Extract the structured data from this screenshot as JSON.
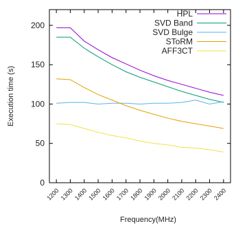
{
  "chart_data": {
    "type": "line",
    "title": "",
    "xlabel": "Frequency(MHz)",
    "ylabel": "Execution time (s)",
    "x": [
      1200,
      1300,
      1400,
      1500,
      1600,
      1700,
      1800,
      1900,
      2000,
      2100,
      2200,
      2300,
      2400
    ],
    "xlim": [
      1150,
      2450
    ],
    "ylim": [
      0,
      220
    ],
    "yticks": [
      0,
      50,
      100,
      150,
      200
    ],
    "grid": false,
    "legend_position": "top-right",
    "series": [
      {
        "name": "HPL",
        "color": "#9400d3",
        "values": [
          197,
          197,
          180,
          169,
          159,
          151,
          143,
          136,
          130,
          125,
          120,
          115,
          111
        ]
      },
      {
        "name": "SVD Band",
        "color": "#009e73",
        "values": [
          185,
          185,
          171,
          160,
          150,
          141,
          134,
          128,
          122,
          116,
          111,
          106,
          102
        ]
      },
      {
        "name": "SVD Bulge",
        "color": "#56b4e9",
        "values": [
          101,
          102,
          102,
          100,
          101,
          101,
          100,
          101,
          101,
          102,
          105,
          100,
          103
        ]
      },
      {
        "name": "SToRM",
        "color": "#e69f00",
        "values": [
          132,
          131,
          121,
          112,
          105,
          98,
          92,
          87,
          82,
          78,
          75,
          72,
          69
        ]
      },
      {
        "name": "AFF3CT",
        "color": "#f0e442",
        "values": [
          75,
          74,
          69,
          64,
          60,
          57,
          53,
          50,
          48,
          45,
          44,
          42,
          39
        ]
      }
    ]
  }
}
